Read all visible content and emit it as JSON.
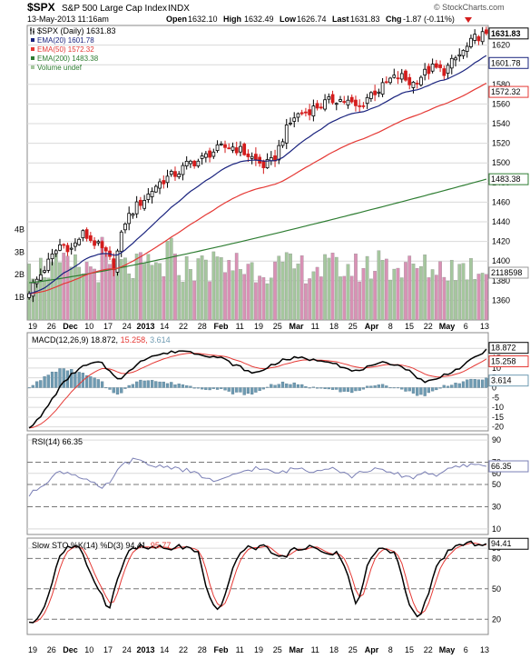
{
  "header": {
    "symbol": "$SPX",
    "name": "S&P 500 Large Cap Index",
    "exchange": "INDX",
    "datetime": "13-May-2013 11:16am",
    "open_label": "Open",
    "open": "1632.10",
    "high_label": "High",
    "high": "1632.49",
    "low_label": "Low",
    "low": "1626.74",
    "last_label": "Last",
    "last": "1631.83",
    "chg_label": "Chg",
    "chg": "-1.87 (-0.11%)",
    "brand": "© StockCharts.com",
    "brand_text": "StockCharts.com"
  },
  "legend": {
    "price": "$SPX (Daily) 1631.83",
    "ema20": "EMA(20) 1601.78",
    "ema50": "EMA(50) 1572.32",
    "ema200": "EMA(200) 1483.38",
    "volume": "Volume undef"
  },
  "macd_legend": {
    "main": "MACD(12,26,9) 18.872,",
    "signal": "15.258,",
    "hist": "3.614"
  },
  "rsi_legend": "RSI(14) 66.35",
  "sto_legend": {
    "main": "Slow STO %K(14) %D(3) 94.41,",
    "d": "95.77"
  },
  "colors": {
    "up": "#000000",
    "down": "#d41c1c",
    "ema20": "#1a237e",
    "ema50": "#e53935",
    "ema200": "#2e7d32",
    "vol_up": "#a5c79e",
    "vol_down": "#d991b5",
    "macd_hist": "#6f9bb2",
    "rsi": "#7a7fb5",
    "grid": "#d9d9d9",
    "frame": "#888888"
  },
  "chart_data": {
    "type": "candlestick",
    "x_tick_labels": [
      "19",
      "26",
      "Dec",
      "10",
      "17",
      "24",
      "2013",
      "14",
      "22",
      "28",
      "Feb",
      "11",
      "19",
      "25",
      "Mar",
      "11",
      "18",
      "25",
      "Apr",
      "8",
      "15",
      "22",
      "May",
      "6",
      "13"
    ],
    "bold_x_labels": [
      "Dec",
      "2013",
      "Feb",
      "Mar",
      "Apr",
      "May"
    ],
    "price_axis": {
      "range": [
        1340,
        1640
      ],
      "ticks": [
        "1620",
        "1600",
        "1580",
        "1560",
        "1540",
        "1520",
        "1500",
        "1480",
        "1460",
        "1440",
        "1420",
        "1400",
        "1380",
        "1360"
      ]
    },
    "volume_axis_labels": [
      "4B",
      "3B",
      "2B",
      "1B"
    ],
    "volume_max": 4.5,
    "price_badges": {
      "last": "1631.83",
      "ema20": "1601.78",
      "ema50": "1572.32",
      "ema200": "1483.38",
      "volume": "2118598"
    },
    "price_anchors": [
      1370,
      1385,
      1402,
      1418,
      1412,
      1428,
      1420,
      1410,
      1395,
      1440,
      1455,
      1465,
      1478,
      1485,
      1490,
      1500,
      1502,
      1510,
      1515,
      1517,
      1512,
      1505,
      1497,
      1502,
      1530,
      1548,
      1552,
      1557,
      1562,
      1565,
      1562,
      1555,
      1570,
      1575,
      1585,
      1588,
      1580,
      1590,
      1597,
      1593,
      1605,
      1615,
      1628,
      1632
    ],
    "macd_axis": {
      "range": [
        -22,
        28
      ],
      "ticks": [
        "20",
        "15",
        "10",
        "5",
        "0",
        "-5",
        "-10",
        "-15",
        "-20"
      ]
    },
    "macd_badges": {
      "macd": "18.872",
      "signal": "15.258",
      "hist": "3.614"
    },
    "macd_anchors": [
      -20,
      -16,
      -8,
      0,
      6,
      10,
      12,
      13,
      8,
      4,
      9,
      14,
      16,
      17,
      18,
      19,
      18,
      17,
      16,
      15,
      12,
      10,
      7,
      9,
      12,
      14,
      15,
      15,
      14,
      14,
      13,
      10,
      8,
      10,
      11,
      13,
      12,
      10,
      6,
      3,
      4,
      7,
      9,
      12,
      16,
      18.9
    ],
    "rsi_axis": {
      "range": [
        5,
        95
      ],
      "ticks": [
        "90",
        "70",
        "60",
        "50",
        "30",
        "10"
      ]
    },
    "rsi_last": "66.35",
    "rsi_anchors": [
      40,
      48,
      55,
      62,
      60,
      57,
      52,
      45,
      55,
      68,
      72,
      70,
      66,
      67,
      65,
      63,
      60,
      56,
      52,
      55,
      60,
      63,
      65,
      62,
      60,
      63,
      65,
      62,
      64,
      66,
      62,
      57,
      61,
      64,
      62,
      60,
      58,
      56,
      62,
      58,
      62,
      65,
      67,
      68,
      66.35
    ],
    "sto_axis": {
      "range": [
        5,
        100
      ],
      "ticks": [
        "90",
        "80",
        "50",
        "20"
      ]
    },
    "sto_last": "94.41",
    "sto_anchors": [
      15,
      22,
      45,
      82,
      92,
      90,
      70,
      50,
      30,
      62,
      88,
      92,
      90,
      91,
      88,
      92,
      90,
      85,
      42,
      28,
      52,
      85,
      90,
      91,
      92,
      80,
      84,
      90,
      92,
      88,
      85,
      86,
      66,
      30,
      72,
      90,
      88,
      84,
      40,
      20,
      38,
      72,
      86,
      92,
      94,
      95,
      94.4
    ],
    "sessions": 120
  }
}
